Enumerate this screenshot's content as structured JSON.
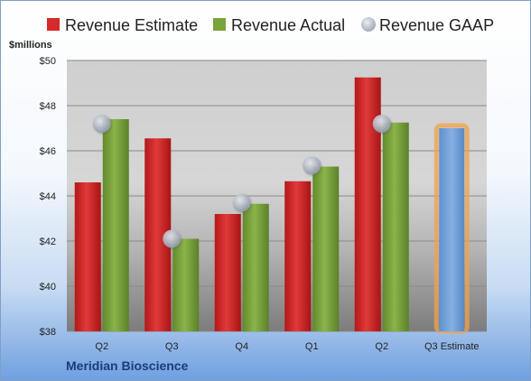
{
  "chart_data": {
    "type": "bar",
    "title": "",
    "ylabel": "$millions",
    "ylim": [
      38,
      50
    ],
    "y_ticks": [
      "$38",
      "$40",
      "$42",
      "$44",
      "$46",
      "$48",
      "$50"
    ],
    "categories": [
      "Q2",
      "Q3",
      "Q4",
      "Q1",
      "Q2",
      "Q3 Estimate"
    ],
    "series": [
      {
        "name": "Revenue Estimate",
        "color": "#d62a2a",
        "values": [
          44.6,
          46.55,
          43.2,
          44.65,
          49.25,
          null
        ]
      },
      {
        "name": "Revenue Actual",
        "color": "#79a33b",
        "values": [
          47.4,
          42.1,
          43.65,
          45.3,
          47.25,
          null
        ]
      },
      {
        "name": "Revenue GAAP",
        "color": "#a9b4c6",
        "values": [
          47.2,
          42.1,
          43.7,
          45.35,
          47.2,
          null
        ]
      }
    ],
    "highlight": {
      "category": "Q3 Estimate",
      "value": 47.0,
      "fill": "#6f9fd8",
      "outline": "#f2a24a"
    },
    "grid": true,
    "legend_position": "top"
  },
  "company": "Meridian Bioscience"
}
